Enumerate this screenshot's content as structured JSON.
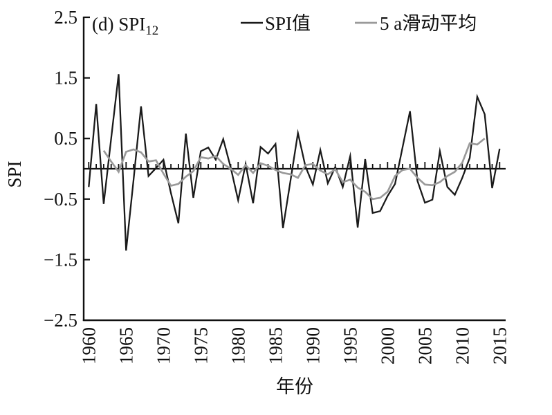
{
  "figure": {
    "panel_label": "(d) SPI",
    "panel_label_subscript": "12",
    "y_axis": {
      "label": "SPI",
      "tick_labels": [
        "2.5",
        "1.5",
        "0.5",
        "−0.5",
        "−1.5",
        "−2.5"
      ],
      "tick_values": [
        2.5,
        1.5,
        0.5,
        -0.5,
        -1.5,
        -2.5
      ],
      "range": [
        -2.5,
        2.5
      ]
    },
    "x_axis": {
      "label": "年份",
      "tick_labels": [
        "1960",
        "1965",
        "1970",
        "1975",
        "1980",
        "1985",
        "1990",
        "1995",
        "2000",
        "2005",
        "2010",
        "2015"
      ],
      "tick_values": [
        1960,
        1965,
        1970,
        1975,
        1980,
        1985,
        1990,
        1995,
        2000,
        2005,
        2010,
        2015
      ],
      "minor_tick_step_years": 1,
      "range": [
        1960,
        2016
      ]
    },
    "legend": [
      {
        "label": "SPI值",
        "color": "#1a1a1a"
      },
      {
        "label": "5 a滑动平均",
        "color": "#9a9a9a"
      }
    ]
  },
  "chart_data": {
    "type": "line",
    "title": "(d) SPI12",
    "xlabel": "年份",
    "ylabel": "SPI",
    "ylim": [
      -2.5,
      2.5
    ],
    "xlim": [
      1960,
      2016
    ],
    "grid": false,
    "legend_position": "top",
    "zero_line": true,
    "x": [
      1960,
      1961,
      1962,
      1963,
      1964,
      1965,
      1966,
      1967,
      1968,
      1969,
      1970,
      1971,
      1972,
      1973,
      1974,
      1975,
      1976,
      1977,
      1978,
      1979,
      1980,
      1981,
      1982,
      1983,
      1984,
      1985,
      1986,
      1987,
      1988,
      1989,
      1990,
      1991,
      1992,
      1993,
      1994,
      1995,
      1996,
      1997,
      1998,
      1999,
      2000,
      2001,
      2002,
      2003,
      2004,
      2005,
      2006,
      2007,
      2008,
      2009,
      2010,
      2011,
      2012,
      2013,
      2014,
      2015
    ],
    "series": [
      {
        "name": "SPI值",
        "color": "#1a1a1a",
        "x_start": 1960,
        "values": [
          -0.3,
          1.07,
          -0.58,
          0.5,
          1.56,
          -1.35,
          -0.18,
          1.03,
          -0.12,
          0.01,
          0.15,
          -0.4,
          -0.9,
          0.58,
          -0.48,
          0.29,
          0.35,
          0.15,
          0.49,
          0.02,
          -0.52,
          0.08,
          -0.57,
          0.36,
          0.25,
          0.41,
          -0.98,
          -0.2,
          0.59,
          0.04,
          -0.26,
          0.31,
          -0.24,
          0.03,
          -0.3,
          0.21,
          -0.97,
          0.16,
          -0.73,
          -0.7,
          -0.45,
          -0.25,
          0.35,
          0.95,
          -0.2,
          -0.56,
          -0.51,
          0.29,
          -0.3,
          -0.43,
          -0.15,
          0.18,
          1.19,
          0.9,
          -0.32,
          0.33
        ]
      },
      {
        "name": "5 a滑动平均",
        "color": "#9a9a9a",
        "x_start": 1962,
        "values": [
          0.3,
          0.12,
          -0.05,
          0.28,
          0.32,
          0.27,
          0.12,
          0.14,
          -0.08,
          -0.28,
          -0.25,
          -0.13,
          -0.04,
          0.19,
          0.17,
          0.21,
          0.08,
          0.0,
          -0.1,
          0.06,
          -0.07,
          0.09,
          0.05,
          -0.02,
          -0.07,
          -0.09,
          -0.15,
          0.06,
          0.08,
          -0.03,
          -0.09,
          -0.01,
          -0.22,
          -0.18,
          -0.31,
          -0.38,
          -0.5,
          -0.48,
          -0.38,
          -0.12,
          -0.02,
          0.0,
          -0.15,
          -0.26,
          -0.27,
          -0.22,
          -0.12,
          -0.05,
          0.1,
          0.42,
          0.4,
          0.5
        ]
      }
    ]
  }
}
